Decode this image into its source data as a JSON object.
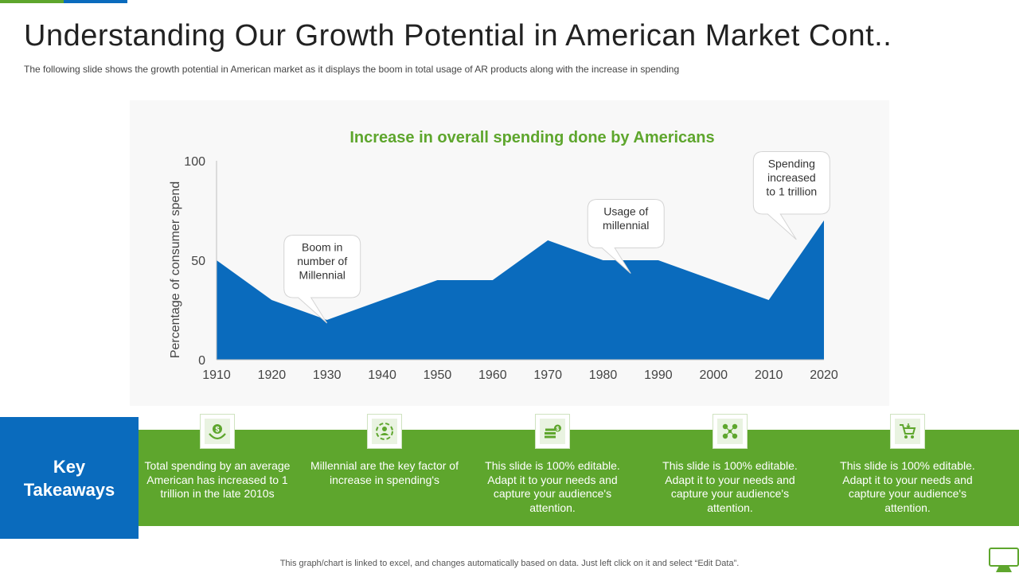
{
  "title": "Understanding Our Growth Potential in American Market Cont..",
  "subtitle": "The following  slide shows the growth  potential in American market as it displays the boom in total usage of AR products along with the increase in spending",
  "chart_data": {
    "type": "area",
    "title": "Increase in overall spending done by Americans",
    "xlabel": "",
    "ylabel": "Percentage of consumer  spend",
    "x": [
      "1910",
      "1920",
      "1930",
      "1940",
      "1950",
      "1960",
      "1970",
      "1980",
      "1990",
      "2000",
      "2010",
      "2020"
    ],
    "values": [
      50,
      30,
      20,
      30,
      40,
      40,
      60,
      50,
      50,
      40,
      30,
      70
    ],
    "ylim": [
      0,
      100
    ],
    "yticks": [
      "0",
      "50",
      "100"
    ],
    "grid": false,
    "color": "#0a6bbd",
    "title_color": "#5ea62d",
    "annotations": [
      {
        "text": "Boom in number of Millennial",
        "lines": [
          "Boom in",
          "number of",
          "Millennial"
        ],
        "x": "1930",
        "y": 20
      },
      {
        "text": "Usage of millennial",
        "lines": [
          "Usage of",
          "millennial"
        ],
        "x": "1985",
        "y": 45
      },
      {
        "text": "Spending increased to 1 trillion",
        "lines": [
          "Spending",
          "increased",
          "to 1 trillion"
        ],
        "x": "2015",
        "y": 62
      }
    ]
  },
  "key_takeaways": {
    "label_line1": "Key",
    "label_line2": "Takeaways",
    "items": [
      {
        "icon": "money-hand-icon",
        "text": "Total spending by an average American has increased to 1 trillion in the late 2010s"
      },
      {
        "icon": "people-circle-icon",
        "text": "Millennial  are the key factor of increase in spending's"
      },
      {
        "icon": "cash-stack-icon",
        "text": "This slide is 100% editable. Adapt it to your needs and capture your audience's attention."
      },
      {
        "icon": "network-people-icon",
        "text": "This slide is 100% editable. Adapt it to your needs and capture your audience's attention."
      },
      {
        "icon": "shopping-cart-icon",
        "text": "This slide is 100% editable. Adapt it to your needs and capture your audience's attention."
      }
    ]
  },
  "footer": "This graph/chart is linked to excel,  and changes automatically based on data. Just left click on it and select “Edit Data”.",
  "colors": {
    "green": "#5ea62d",
    "blue": "#0a6bbd"
  }
}
